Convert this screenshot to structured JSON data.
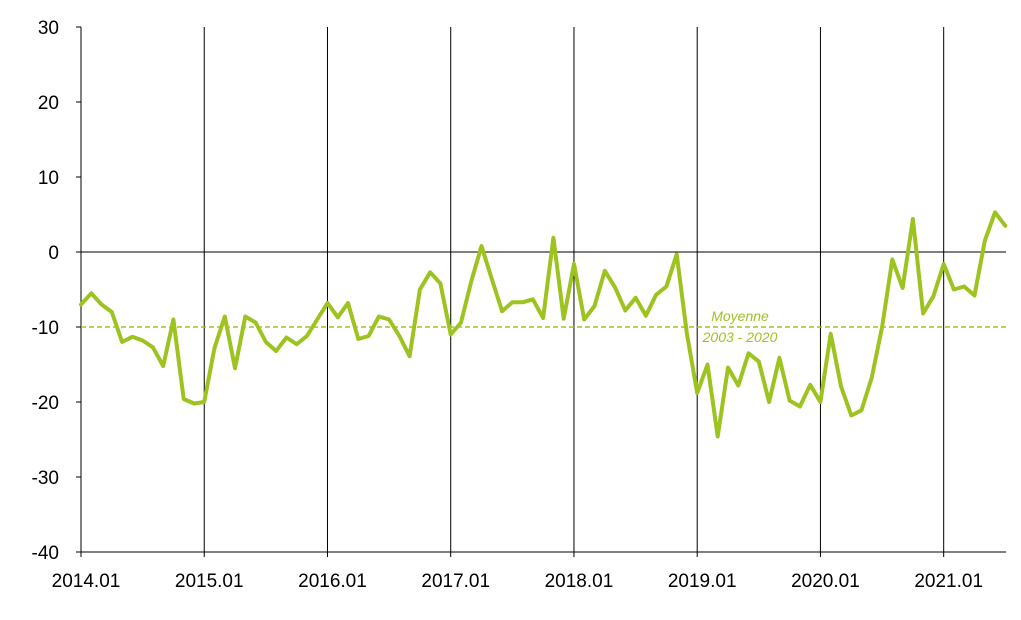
{
  "chart_data": {
    "type": "line",
    "title": "",
    "xlabel": "",
    "ylabel": "",
    "ylim": [
      -40,
      30
    ],
    "yticks": [
      30,
      20,
      10,
      0,
      -10,
      -20,
      -30,
      -40
    ],
    "x_start": "2014.01",
    "x_tick_labels": [
      "2014.01",
      "2015.01",
      "2016.01",
      "2017.01",
      "2018.01",
      "2019.01",
      "2020.01",
      "2021.01"
    ],
    "grid": "vertical lines at each January; horizontal line at 0",
    "series": [
      {
        "color": "#9DC320",
        "values": [
          -7,
          -5.5,
          -7,
          -8,
          -12,
          -11.3,
          -11.8,
          -12.7,
          -15.2,
          -9,
          -19.6,
          -20.2,
          -20,
          -12.8,
          -8.6,
          -15.5,
          -8.6,
          -9.4,
          -12,
          -13.2,
          -11.4,
          -12.3,
          -11.2,
          -9,
          -6.8,
          -8.7,
          -6.8,
          -11.6,
          -11.2,
          -8.6,
          -9,
          -11.2,
          -13.9,
          -5,
          -2.7,
          -4.2,
          -11,
          -9.4,
          -3.9,
          0.8,
          -3.6,
          -7.9,
          -6.7,
          -6.7,
          -6.3,
          -8.8,
          1.9,
          -8.9,
          -1.6,
          -9,
          -7.2,
          -2.5,
          -4.7,
          -7.8,
          -6.1,
          -8.5,
          -5.7,
          -4.6,
          -0.3,
          -10.9,
          -18.8,
          -15,
          -24.6,
          -15.4,
          -17.8,
          -13.5,
          -14.6,
          -20,
          -14.1,
          -19.8,
          -20.6,
          -17.7,
          -20,
          -10.9,
          -17.9,
          -21.8,
          -21.1,
          -16.7,
          -10,
          -1,
          -4.8,
          4.4,
          -8.2,
          -5.9,
          -1.6,
          -5,
          -4.6,
          -5.8,
          1.5,
          5.3,
          3.5
        ]
      },
      {
        "label": "Moyenne 2003 - 2020",
        "label_lines": [
          "Moyenne",
          "2003 - 2020"
        ],
        "value": -10,
        "color": "#9DC320",
        "style": "dashed"
      }
    ]
  }
}
